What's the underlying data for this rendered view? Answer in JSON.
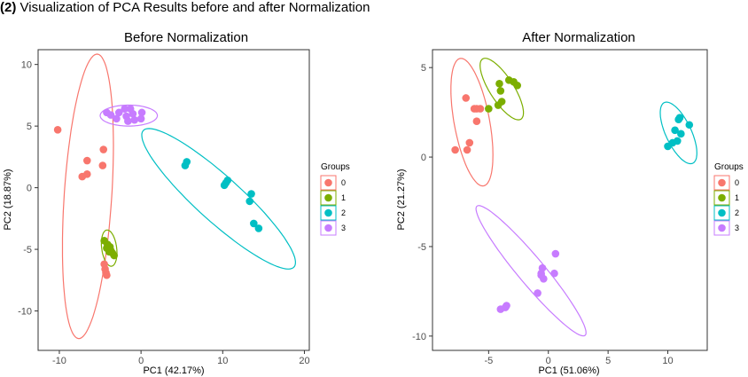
{
  "caption": {
    "number": "(2)",
    "text": "Visualization of PCA Results before and after Normalization"
  },
  "legend_title": "Groups",
  "groups": [
    {
      "label": "0",
      "color": "#F8766D"
    },
    {
      "label": "1",
      "color": "#7CAE00"
    },
    {
      "label": "2",
      "color": "#00BFC4"
    },
    {
      "label": "3",
      "color": "#C77CFF"
    }
  ],
  "chart_data": [
    {
      "type": "scatter",
      "title": "Before Normalization",
      "xlabel": "PC1 (42.17%)",
      "ylabel": "PC2 (18.87%)",
      "xlim": [
        -12.6,
        20.6
      ],
      "ylim": [
        -13.2,
        11.2
      ],
      "xticks": [
        -10,
        0,
        10,
        20
      ],
      "yticks": [
        -10,
        -5,
        0,
        5,
        10
      ],
      "grid": false,
      "legend": "right",
      "ellipses": [
        {
          "group": "0",
          "cx": -6.5,
          "cy": -0.7,
          "rx": 11.6,
          "ry": 2.9,
          "angle_deg": 84.1
        },
        {
          "group": "1",
          "cx": -3.9,
          "cy": -4.9,
          "rx": 1.5,
          "ry": 0.9,
          "angle_deg": -75
        },
        {
          "group": "2",
          "cx": 9.5,
          "cy": -0.9,
          "rx": 10.8,
          "ry": 2.1,
          "angle_deg": -30
        },
        {
          "group": "3",
          "cx": -1.5,
          "cy": 5.85,
          "rx": 3.5,
          "ry": 0.85,
          "angle_deg": 0
        }
      ],
      "series": [
        {
          "name": "0",
          "points": [
            [
              -10.2,
              4.7
            ],
            [
              -6.6,
              2.2
            ],
            [
              -6.6,
              1.1
            ],
            [
              -7.2,
              0.9
            ],
            [
              -4.7,
              1.8
            ],
            [
              -4.6,
              3.1
            ],
            [
              -4.5,
              -6.2
            ],
            [
              -4.4,
              -6.6
            ],
            [
              -4.3,
              -6.9
            ],
            [
              -4.2,
              -7.1
            ]
          ]
        },
        {
          "name": "1",
          "points": [
            [
              -4.5,
              -4.3
            ],
            [
              -4.1,
              -4.6
            ],
            [
              -3.8,
              -4.8
            ],
            [
              -3.7,
              -5.1
            ],
            [
              -3.5,
              -5.3
            ],
            [
              -3.3,
              -5.5
            ],
            [
              -4.2,
              -4.9
            ],
            [
              -3.9,
              -5.2
            ]
          ]
        },
        {
          "name": "2",
          "points": [
            [
              5.6,
              2.1
            ],
            [
              5.4,
              1.8
            ],
            [
              10.6,
              0.6
            ],
            [
              10.2,
              0.2
            ],
            [
              10.4,
              0.4
            ],
            [
              13.5,
              -0.5
            ],
            [
              13.3,
              -1.1
            ],
            [
              13.8,
              -2.9
            ],
            [
              14.4,
              -3.3
            ]
          ]
        },
        {
          "name": "3",
          "points": [
            [
              -4.2,
              6.1
            ],
            [
              -3.7,
              5.9
            ],
            [
              -2.7,
              6.1
            ],
            [
              -2.0,
              6.4
            ],
            [
              -1.8,
              5.8
            ],
            [
              -1.6,
              5.4
            ],
            [
              -1.0,
              6.0
            ],
            [
              -0.8,
              5.5
            ],
            [
              0.1,
              6.1
            ],
            [
              0.0,
              5.6
            ],
            [
              -3.0,
              5.6
            ],
            [
              -1.3,
              6.4
            ]
          ]
        }
      ]
    },
    {
      "type": "scatter",
      "title": "After Normalization",
      "xlabel": "PC1 (51.06%)",
      "ylabel": "PC2 (21.27%)",
      "xlim": [
        -9.7,
        13.3
      ],
      "ylim": [
        -10.8,
        6.0
      ],
      "xticks": [
        -5,
        0,
        5,
        10
      ],
      "yticks": [
        -10,
        -5,
        0,
        5
      ],
      "grid": false,
      "legend": "right",
      "ellipses": [
        {
          "group": "0",
          "cx": -6.4,
          "cy": 1.95,
          "rx": 3.7,
          "ry": 1.45,
          "angle_deg": -73
        },
        {
          "group": "1",
          "cx": -3.9,
          "cy": 3.8,
          "rx": 2.35,
          "ry": 0.85,
          "angle_deg": -43
        },
        {
          "group": "2",
          "cx": 10.9,
          "cy": 1.35,
          "rx": 2.1,
          "ry": 0.95,
          "angle_deg": -50
        },
        {
          "group": "3",
          "cx": -1.45,
          "cy": -6.35,
          "rx": 5.8,
          "ry": 0.9,
          "angle_deg": -38
        }
      ],
      "series": [
        {
          "name": "0",
          "points": [
            [
              -6.9,
              3.3
            ],
            [
              -6.2,
              2.7
            ],
            [
              -6.0,
              2.7
            ],
            [
              -5.7,
              2.7
            ],
            [
              -6.0,
              2.0
            ],
            [
              -6.6,
              0.8
            ],
            [
              -6.8,
              0.4
            ],
            [
              -7.8,
              0.4
            ]
          ]
        },
        {
          "name": "1",
          "points": [
            [
              -5.0,
              2.7
            ],
            [
              -4.2,
              2.9
            ],
            [
              -3.9,
              3.1
            ],
            [
              -4.0,
              3.7
            ],
            [
              -4.1,
              4.1
            ],
            [
              -3.3,
              4.3
            ],
            [
              -2.9,
              4.2
            ],
            [
              -2.6,
              4.0
            ]
          ]
        },
        {
          "name": "2",
          "points": [
            [
              10.0,
              0.6
            ],
            [
              10.4,
              0.8
            ],
            [
              10.8,
              0.9
            ],
            [
              11.1,
              1.3
            ],
            [
              10.6,
              1.5
            ],
            [
              11.8,
              1.8
            ],
            [
              10.9,
              2.1
            ],
            [
              11.0,
              2.2
            ]
          ]
        },
        {
          "name": "3",
          "points": [
            [
              -4.0,
              -8.5
            ],
            [
              -3.5,
              -8.3
            ],
            [
              -0.9,
              -7.6
            ],
            [
              -0.6,
              -6.6
            ],
            [
              -0.5,
              -6.2
            ],
            [
              -0.4,
              -6.8
            ],
            [
              0.5,
              -6.5
            ],
            [
              0.6,
              -5.4
            ],
            [
              -3.6,
              -8.4
            ],
            [
              -0.6,
              -6.5
            ]
          ]
        }
      ]
    }
  ]
}
